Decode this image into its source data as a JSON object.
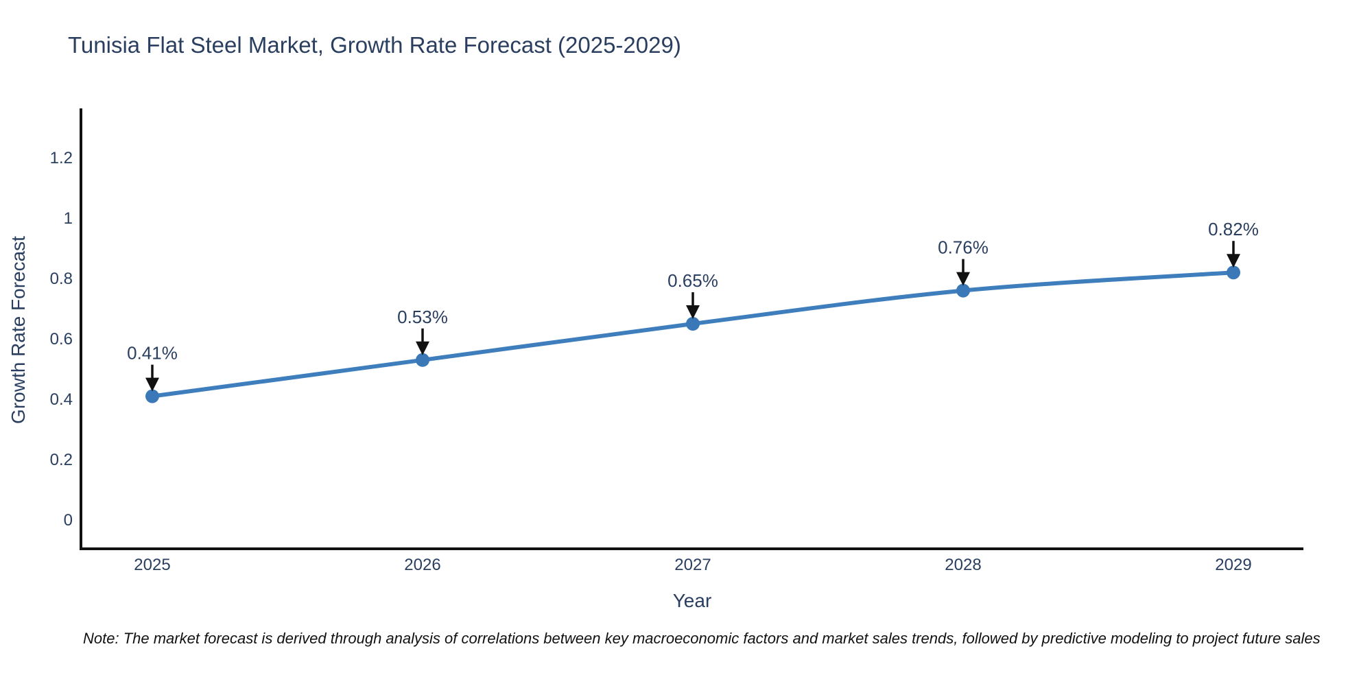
{
  "title": "Tunisia Flat Steel Market, Growth Rate Forecast (2025-2029)",
  "note": "Note: The market forecast is derived through analysis of correlations between key macroeconomic factors and market sales trends, followed by predictive modeling to project future sales",
  "chart_data": {
    "type": "line",
    "title": "Tunisia Flat Steel Market, Growth Rate Forecast (2025-2029)",
    "xlabel": "Year",
    "ylabel": "Growth Rate Forecast",
    "x": [
      2025,
      2026,
      2027,
      2028,
      2029
    ],
    "series": [
      {
        "name": "Growth Rate Forecast",
        "values": [
          0.41,
          0.53,
          0.65,
          0.76,
          0.82
        ]
      }
    ],
    "point_labels": [
      "0.41%",
      "0.53%",
      "0.65%",
      "0.76%",
      "0.82%"
    ],
    "y_ticks": [
      0,
      0.2,
      0.4,
      0.6,
      0.8,
      1,
      1.2
    ],
    "ylim": [
      -0.1,
      1.36
    ],
    "grid": false,
    "legend": "none",
    "marker_shape": "circle",
    "annotation_style": "black-down-arrow",
    "colors": {
      "line": "#3f7ebd",
      "marker": "#3a78b8",
      "axis": "#111111",
      "arrow": "#111111",
      "text": "#2a3f5f",
      "note_text": "#111111",
      "background": "#ffffff"
    }
  }
}
